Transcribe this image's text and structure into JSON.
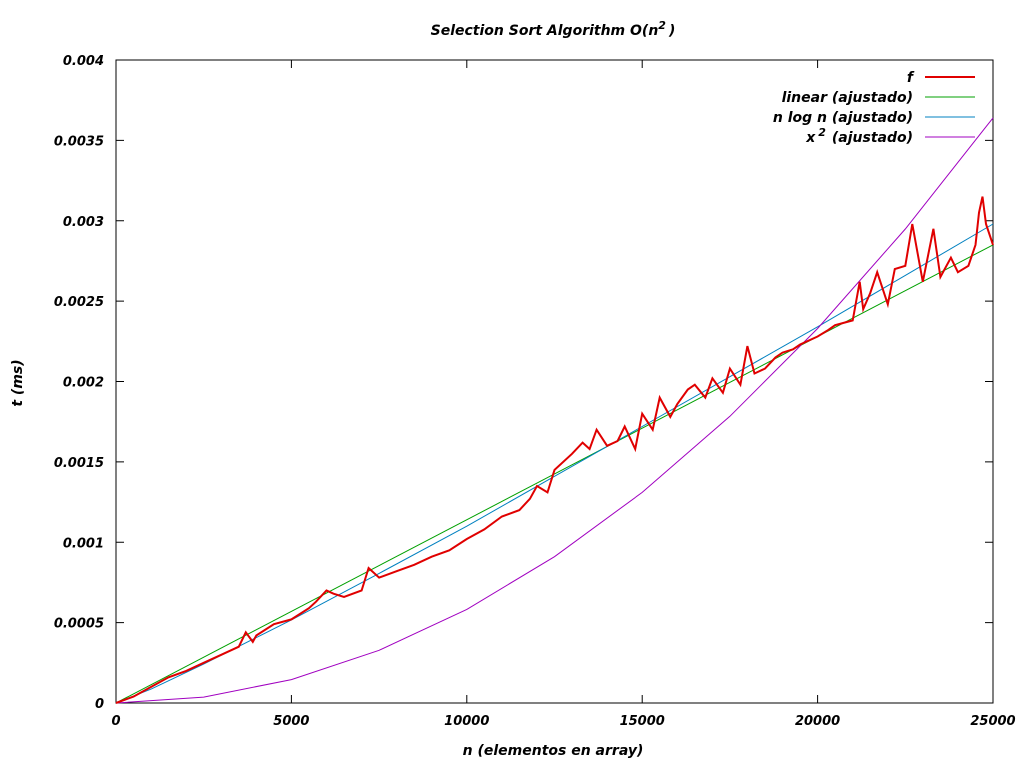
{
  "chart_data": {
    "type": "line",
    "title": "Selection Sort Algorithm O(n",
    "title_superscript": "2",
    "title_suffix": ")",
    "xlabel": "n (elementos en array)",
    "ylabel": "t (ms)",
    "xlim": [
      0,
      25000
    ],
    "ylim": [
      0,
      0.004
    ],
    "xticks": [
      0,
      5000,
      10000,
      15000,
      20000,
      25000
    ],
    "xtick_labels": [
      "0",
      "5000",
      "10000",
      "15000",
      "20000",
      "25000"
    ],
    "yticks": [
      0,
      0.0005,
      0.001,
      0.0015,
      0.002,
      0.0025,
      0.003,
      0.0035,
      0.004
    ],
    "ytick_labels": [
      "0",
      "0.0005",
      "0.001",
      "0.0015",
      "0.002",
      "0.0025",
      "0.003",
      "0.0035",
      "0.004"
    ],
    "grid": false,
    "legend_position": "top-right",
    "series": [
      {
        "name": "f",
        "color": "#e00000",
        "x": [
          0,
          500,
          1000,
          1500,
          2000,
          2500,
          3000,
          3500,
          3700,
          3900,
          4000,
          4500,
          5000,
          5500,
          5700,
          6000,
          6200,
          6500,
          7000,
          7200,
          7500,
          8000,
          8500,
          9000,
          9500,
          10000,
          10500,
          11000,
          11500,
          11800,
          12000,
          12300,
          12500,
          13000,
          13300,
          13500,
          13700,
          14000,
          14300,
          14500,
          14800,
          15000,
          15300,
          15500,
          15800,
          16000,
          16300,
          16500,
          16800,
          17000,
          17300,
          17500,
          17800,
          18000,
          18200,
          18500,
          18800,
          19000,
          19300,
          19500,
          20000,
          20300,
          20500,
          21000,
          21200,
          21300,
          21500,
          21700,
          22000,
          22200,
          22500,
          22700,
          23000,
          23300,
          23500,
          23800,
          24000,
          24300,
          24500,
          24600,
          24700,
          24800,
          25000
        ],
        "y": [
          0,
          4e-05,
          0.0001,
          0.00016,
          0.0002,
          0.00025,
          0.0003,
          0.00035,
          0.00044,
          0.00038,
          0.00042,
          0.00049,
          0.00052,
          0.00059,
          0.00063,
          0.0007,
          0.00068,
          0.00066,
          0.0007,
          0.00084,
          0.00078,
          0.00082,
          0.00086,
          0.00091,
          0.00095,
          0.00102,
          0.00108,
          0.00116,
          0.0012,
          0.00127,
          0.00135,
          0.00131,
          0.00145,
          0.00155,
          0.00162,
          0.00158,
          0.0017,
          0.0016,
          0.00163,
          0.00172,
          0.00158,
          0.0018,
          0.0017,
          0.0019,
          0.00178,
          0.00186,
          0.00195,
          0.00198,
          0.0019,
          0.00202,
          0.00193,
          0.00208,
          0.00198,
          0.00222,
          0.00205,
          0.00208,
          0.00215,
          0.00218,
          0.0022,
          0.00223,
          0.00228,
          0.00232,
          0.00235,
          0.00238,
          0.00262,
          0.00245,
          0.00255,
          0.00268,
          0.00248,
          0.0027,
          0.00272,
          0.00298,
          0.00262,
          0.00295,
          0.00265,
          0.00277,
          0.00268,
          0.00272,
          0.00285,
          0.00305,
          0.00315,
          0.00298,
          0.00285
        ]
      },
      {
        "name": "linear (ajustado)",
        "color": "#00a000",
        "x": [
          0,
          25000
        ],
        "y": [
          0,
          0.00285
        ]
      },
      {
        "name": "n log n (ajustado)",
        "color": "#0080c0",
        "x": [
          0,
          1000,
          2500,
          5000,
          7500,
          10000,
          12500,
          15000,
          17500,
          20000,
          22500,
          25000
        ],
        "y": [
          0,
          8.62e-05,
          0.000242,
          0.000517,
          0.000806,
          0.0011,
          0.00141,
          0.00172,
          0.00203,
          0.00234,
          0.00266,
          0.00298
        ]
      },
      {
        "name": "x (ajustado)",
        "name_prefix": "x",
        "name_superscript": "2",
        "name_suffix": "(ajustado)",
        "color": "#a000c0",
        "x": [
          0,
          2500,
          5000,
          7500,
          10000,
          12500,
          15000,
          17500,
          20000,
          22500,
          25000
        ],
        "y": [
          0,
          3.64e-05,
          0.0001456,
          0.0003276,
          0.0005824,
          0.00091,
          0.0013104,
          0.0017836,
          0.0023296,
          0.0029484,
          0.00364
        ]
      }
    ]
  }
}
